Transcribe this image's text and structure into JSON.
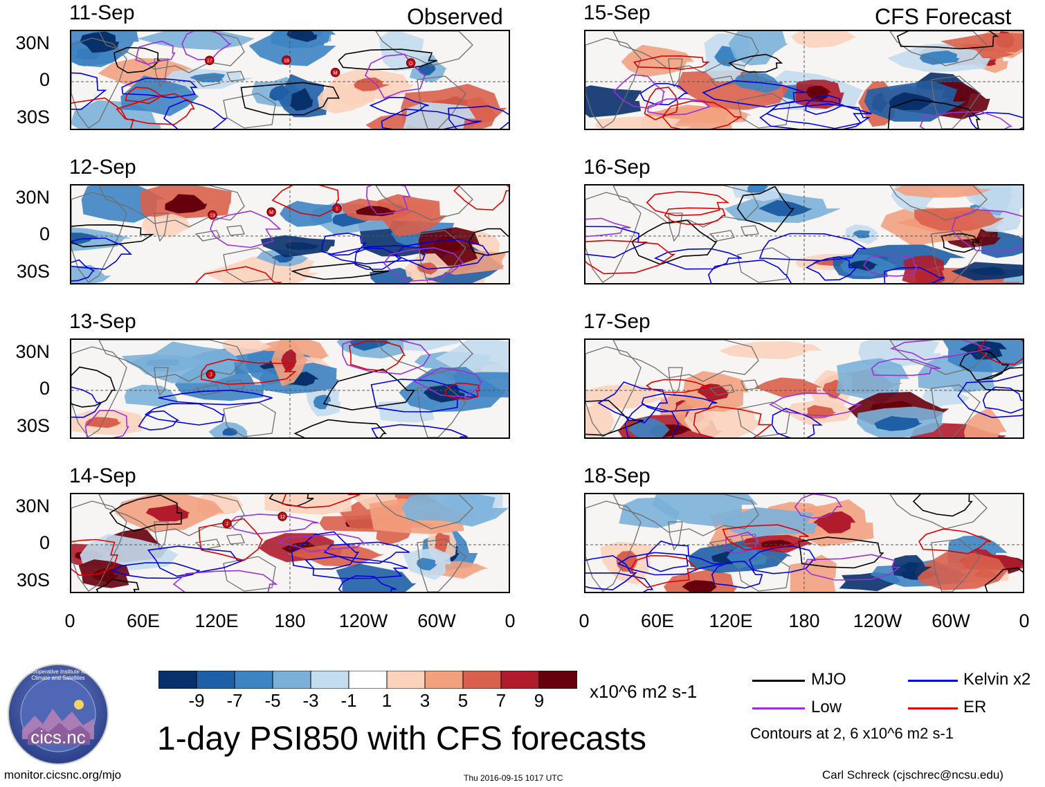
{
  "headers": {
    "observed": "Observed",
    "forecast": "CFS Forecast"
  },
  "panels": [
    {
      "date": "11-Sep",
      "col": 0,
      "row": 0,
      "markers": [
        "17",
        "19",
        "M",
        "O"
      ]
    },
    {
      "date": "12-Sep",
      "col": 0,
      "row": 1,
      "markers": [
        "19",
        "M",
        "I"
      ]
    },
    {
      "date": "13-Sep",
      "col": 0,
      "row": 2,
      "markers": [
        "J"
      ]
    },
    {
      "date": "14-Sep",
      "col": 0,
      "row": 3,
      "markers": [
        "J",
        "12"
      ]
    },
    {
      "date": "15-Sep",
      "col": 1,
      "row": 0,
      "markers": []
    },
    {
      "date": "16-Sep",
      "col": 1,
      "row": 1,
      "markers": []
    },
    {
      "date": "17-Sep",
      "col": 1,
      "row": 2,
      "markers": []
    },
    {
      "date": "18-Sep",
      "col": 1,
      "row": 3,
      "markers": []
    }
  ],
  "lat_labels": [
    "30N",
    "0",
    "30S"
  ],
  "lon_labels": [
    "0",
    "60E",
    "120E",
    "180",
    "120W",
    "60W",
    "0"
  ],
  "colorbar": {
    "colors": [
      "#08306b",
      "#1f5fa6",
      "#3d84c3",
      "#7bb1d9",
      "#c3dcee",
      "#ffffff",
      "#fbd3bd",
      "#f2a17f",
      "#d9604c",
      "#b01c2c",
      "#67000d"
    ],
    "labels": [
      "-9",
      "-7",
      "-5",
      "-3",
      "-1",
      "1",
      "3",
      "5",
      "7",
      "9"
    ],
    "units": "x10^6 m2 s-1"
  },
  "legend": {
    "items": [
      {
        "label": "MJO",
        "color": "#000000"
      },
      {
        "label": "Kelvin x2",
        "color": "#0000dd"
      },
      {
        "label": "Low",
        "color": "#9b30d8"
      },
      {
        "label": "ER",
        "color": "#dd0000"
      }
    ],
    "contour_note": "Contours at 2, 6 x10^6 m2 s-1"
  },
  "logo": {
    "text": "cics.nc",
    "ring_text": "Cooperative Institute for Climate and Satellites"
  },
  "title": "1-day PSI850 with CFS forecasts",
  "footer": {
    "url": "monitor.cicsnc.org/mjo",
    "timestamp": "Thu 2016-09-15 1017 UTC",
    "author": "Carl Schreck (cjschrec@ncsu.edu)"
  }
}
